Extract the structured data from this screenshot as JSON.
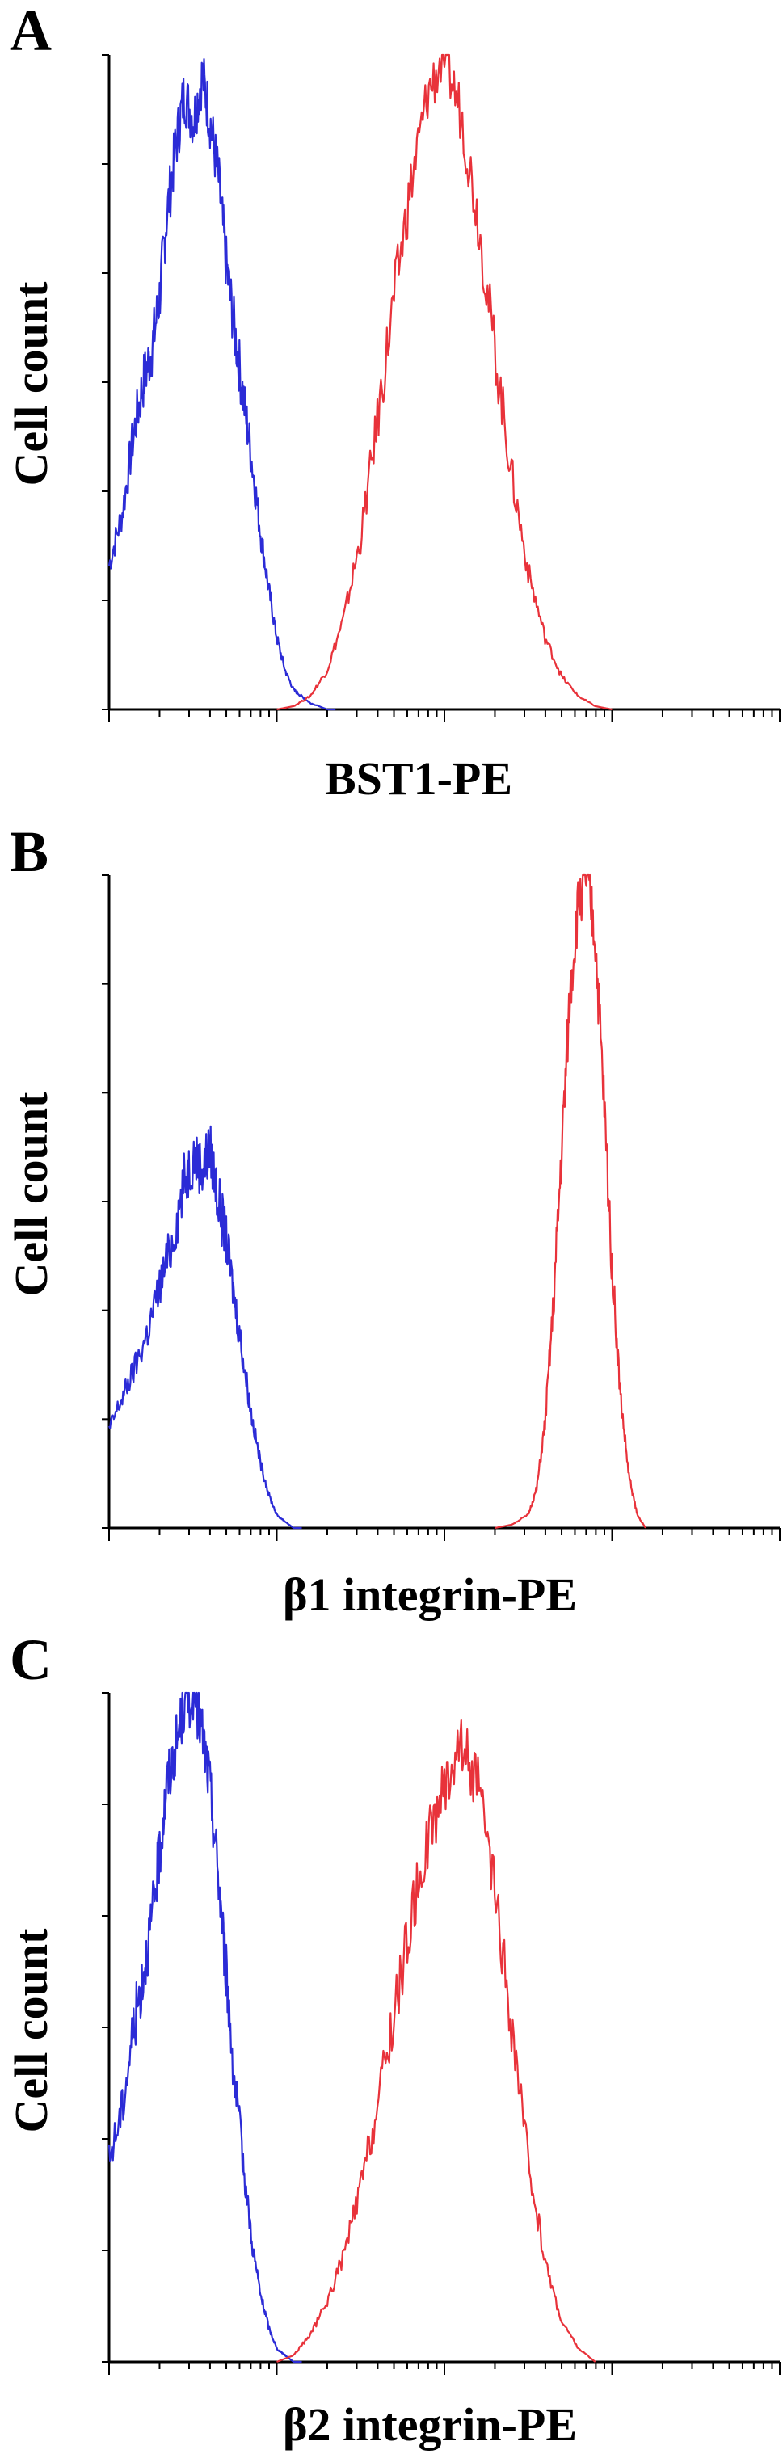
{
  "figure": {
    "panels": [
      {
        "letter": "A",
        "ylabel": "Cell count",
        "xlabel": "BST1-PE"
      },
      {
        "letter": "B",
        "ylabel": "Cell count",
        "xlabel": "β1 integrin-PE"
      },
      {
        "letter": "C",
        "ylabel": "Cell count",
        "xlabel": "β2 integrin-PE"
      }
    ]
  },
  "chart_data": [
    {
      "type": "line",
      "title": "",
      "xlabel": "BST1-PE",
      "ylabel": "Cell count",
      "x_scale": "log",
      "xlim": [
        1,
        10000
      ],
      "ylim": [
        0,
        100
      ],
      "grid": false,
      "legend": "none",
      "series": [
        {
          "color": "#2b2bd6",
          "x": [
            1.0,
            1.2,
            1.4,
            1.6,
            1.8,
            2.0,
            2.2,
            2.5,
            2.8,
            3.2,
            3.6,
            4.0,
            4.5,
            5.0,
            5.6,
            6.3,
            7.1,
            8.0,
            9.0,
            10.0,
            11.2,
            12.6,
            14.1,
            15.8,
            17.8,
            20.0,
            22.4
          ],
          "y": [
            22,
            30,
            42,
            50,
            55,
            63,
            75,
            86,
            94,
            90,
            97,
            90,
            81,
            68,
            58,
            48,
            38,
            27,
            18,
            11,
            6,
            3,
            2,
            1,
            0.5,
            0,
            0
          ]
        },
        {
          "color": "#e8323a",
          "x": [
            10,
            12.6,
            15.8,
            20.0,
            25.1,
            31.6,
            39.8,
            50.1,
            63.1,
            79.4,
            100,
            125.9,
            158.5,
            199.5,
            251.2,
            316.2,
            398.1,
            501.2,
            631.0,
            794.3,
            1000
          ],
          "y": [
            0,
            0.5,
            2,
            6,
            14,
            26,
            44,
            63,
            80,
            94,
            100,
            91,
            75,
            55,
            36,
            21,
            11,
            5,
            2,
            0.5,
            0
          ]
        }
      ]
    },
    {
      "type": "line",
      "title": "",
      "xlabel": "β1 integrin-PE",
      "ylabel": "Cell count",
      "x_scale": "log",
      "xlim": [
        1,
        10000
      ],
      "ylim": [
        0,
        100
      ],
      "grid": false,
      "legend": "none",
      "series": [
        {
          "color": "#2b2bd6",
          "x": [
            1.0,
            1.2,
            1.4,
            1.7,
            2.0,
            2.4,
            2.8,
            3.2,
            3.6,
            4.0,
            4.5,
            5.0,
            5.6,
            6.3,
            7.1,
            8.0,
            9.0,
            10.0,
            11.2,
            12.6,
            14.1
          ],
          "y": [
            15,
            20,
            24,
            30,
            37,
            44,
            53,
            57,
            55,
            58,
            50,
            44,
            35,
            26,
            17,
            10,
            5,
            2,
            1,
            0,
            0
          ]
        },
        {
          "color": "#e8323a",
          "x": [
            200,
            251,
            316,
            355,
            398,
            447,
            501,
            562,
            631,
            708,
            794,
            891,
            1000,
            1122,
            1259,
            1413,
            1585
          ],
          "y": [
            0,
            0.5,
            2,
            6,
            16,
            34,
            58,
            82,
            96,
            100,
            90,
            66,
            40,
            20,
            8,
            2,
            0
          ]
        }
      ]
    },
    {
      "type": "line",
      "title": "",
      "xlabel": "β2 integrin-PE",
      "ylabel": "Cell count",
      "x_scale": "log",
      "xlim": [
        1,
        10000
      ],
      "ylim": [
        0,
        100
      ],
      "grid": false,
      "legend": "none",
      "series": [
        {
          "color": "#2b2bd6",
          "x": [
            1.0,
            1.2,
            1.4,
            1.6,
            1.8,
            2.0,
            2.2,
            2.5,
            2.8,
            3.2,
            3.6,
            4.0,
            4.5,
            5.0,
            5.6,
            6.3,
            7.1,
            8.0,
            9.0,
            10.0,
            11.2,
            12.6,
            14.1
          ],
          "y": [
            30,
            38,
            50,
            58,
            66,
            76,
            86,
            92,
            98,
            100,
            94,
            86,
            72,
            58,
            42,
            30,
            18,
            10,
            5,
            2,
            1,
            0,
            0
          ]
        },
        {
          "color": "#e8323a",
          "x": [
            10,
            12.6,
            15.8,
            20.0,
            25.1,
            31.6,
            39.8,
            50.1,
            63.1,
            79.4,
            100,
            125.9,
            158.5,
            199.5,
            251.2,
            316.2,
            398.1,
            501.2,
            631.0,
            794.3
          ],
          "y": [
            0,
            1,
            4,
            9,
            16,
            26,
            38,
            52,
            66,
            78,
            86,
            93,
            86,
            70,
            50,
            30,
            15,
            6,
            2,
            0
          ]
        }
      ]
    }
  ]
}
